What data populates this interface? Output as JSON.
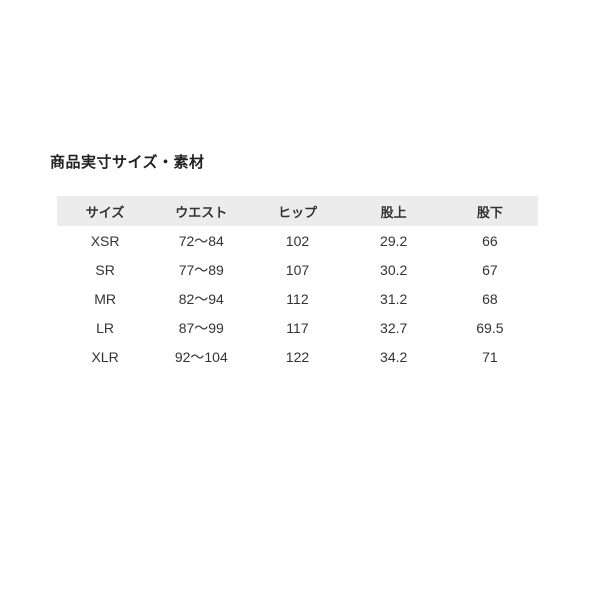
{
  "page": {
    "title": "商品実寸サイズ・素材"
  },
  "size_table": {
    "columns": [
      "サイズ",
      "ウエスト",
      "ヒップ",
      "股上",
      "股下"
    ],
    "rows": [
      [
        "XSR",
        "72〜84",
        "102",
        "29.2",
        "66"
      ],
      [
        "SR",
        "77〜89",
        "107",
        "30.2",
        "67"
      ],
      [
        "MR",
        "82〜94",
        "112",
        "31.2",
        "68"
      ],
      [
        "LR",
        "87〜99",
        "117",
        "32.7",
        "69.5"
      ],
      [
        "XLR",
        "92〜104",
        "122",
        "34.2",
        "71"
      ]
    ],
    "colors": {
      "header_background": "#ececec",
      "text": "#333333",
      "page_background": "#ffffff"
    }
  }
}
